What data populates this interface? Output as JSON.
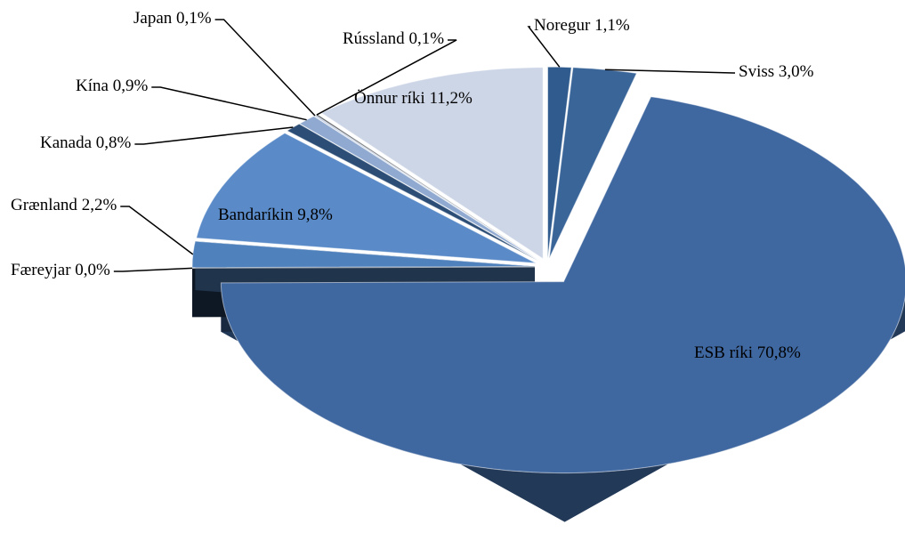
{
  "chart_data": {
    "type": "pie",
    "categories": [
      "Noregur",
      "Sviss",
      "ESB ríki",
      "Færeyjar",
      "Grænland",
      "Bandaríkin",
      "Kanada",
      "Kína",
      "Japan",
      "Rússland",
      "Önnur ríki"
    ],
    "values": [
      1.1,
      3.0,
      70.8,
      0.0,
      2.2,
      9.8,
      0.8,
      0.9,
      0.1,
      0.1,
      11.2
    ],
    "value_labels": [
      "1,1%",
      "3,0%",
      "70,8%",
      "0,0%",
      "2,2%",
      "9,8%",
      "0,8%",
      "0,9%",
      "0,1%",
      "0,1%",
      "11,2%"
    ],
    "colors": [
      "#2f5b8e",
      "#3a6599",
      "#3f67a0",
      "#22395a",
      "#4f81bd",
      "#5a8bc8",
      "#2c4d75",
      "#8fa9d0",
      "#b9c8e0",
      "#555a60",
      "#cdd6e7"
    ]
  }
}
